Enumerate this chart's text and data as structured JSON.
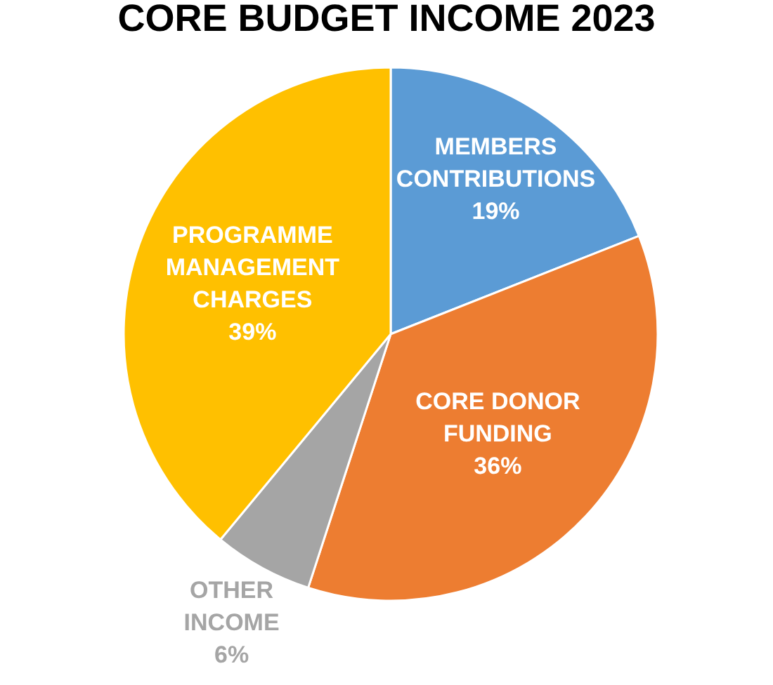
{
  "chart_data": {
    "type": "pie",
    "title": "CORE BUDGET INCOME 2023",
    "categories": [
      "MEMBERS\nCONTRIBUTIONS",
      "CORE DONOR\nFUNDING",
      "OTHER\nINCOME",
      "PROGRAMME\nMANAGEMENT\nCHARGES"
    ],
    "values": [
      19,
      36,
      6,
      39
    ],
    "value_labels": [
      "19%",
      "36%",
      "6%",
      "39%"
    ],
    "colors": [
      "#5b9bd5",
      "#ed7d31",
      "#a5a5a5",
      "#ffc000"
    ],
    "legend": false
  }
}
